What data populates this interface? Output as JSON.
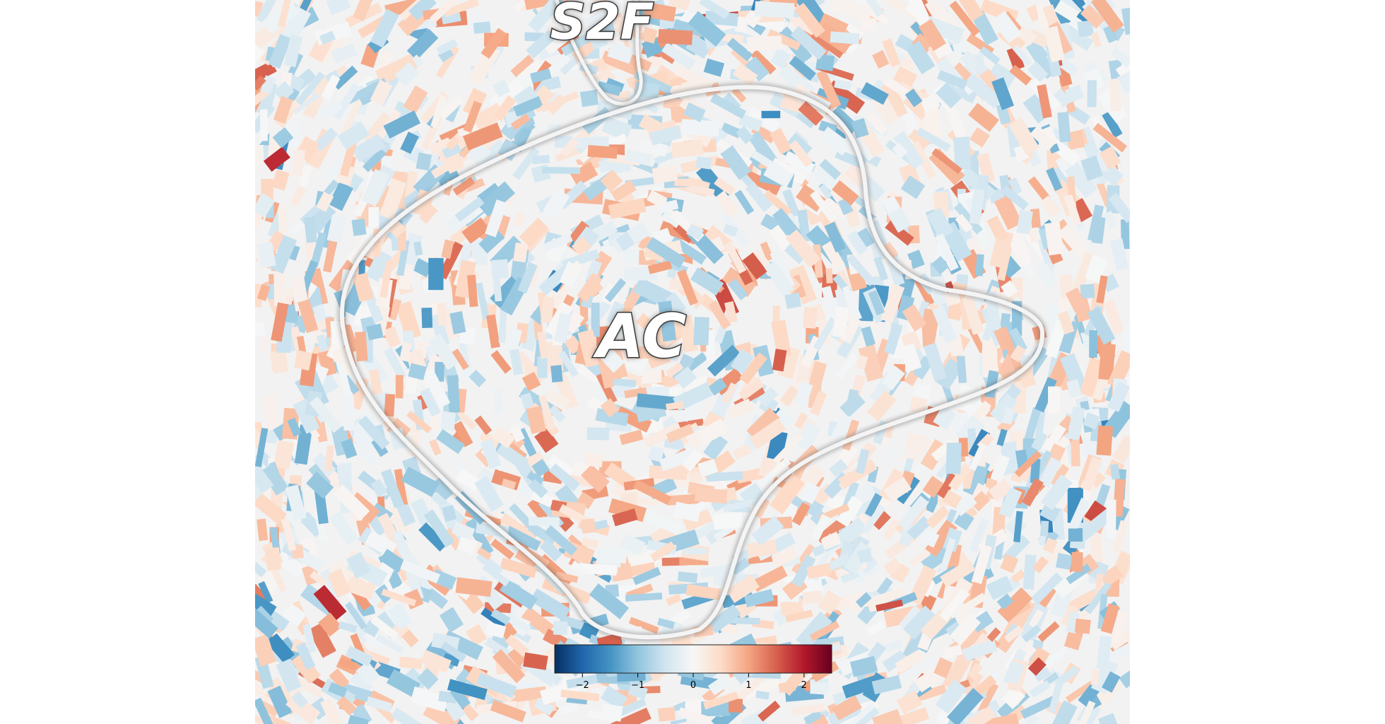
{
  "figure": {
    "map_type": "flatmap patch of cortical surface",
    "colormap": "RdBu_r"
  },
  "roi_labels": [
    {
      "id": "s2f",
      "text": "S2F"
    },
    {
      "id": "ac",
      "text": "AC"
    }
  ],
  "colorbar": {
    "colors": [
      "#053061",
      "#2166ac",
      "#4393c3",
      "#92c5de",
      "#d1e5f0",
      "#f7f7f7",
      "#fddbc7",
      "#f4a582",
      "#d6604d",
      "#b2182b",
      "#67001f"
    ],
    "vmin": -2.5,
    "vmax": 2.5,
    "ticks": [
      {
        "value": -2,
        "label": "−2"
      },
      {
        "value": -1,
        "label": "−1"
      },
      {
        "value": 0,
        "label": "0"
      },
      {
        "value": 1,
        "label": "1"
      },
      {
        "value": 2,
        "label": "2"
      }
    ]
  }
}
